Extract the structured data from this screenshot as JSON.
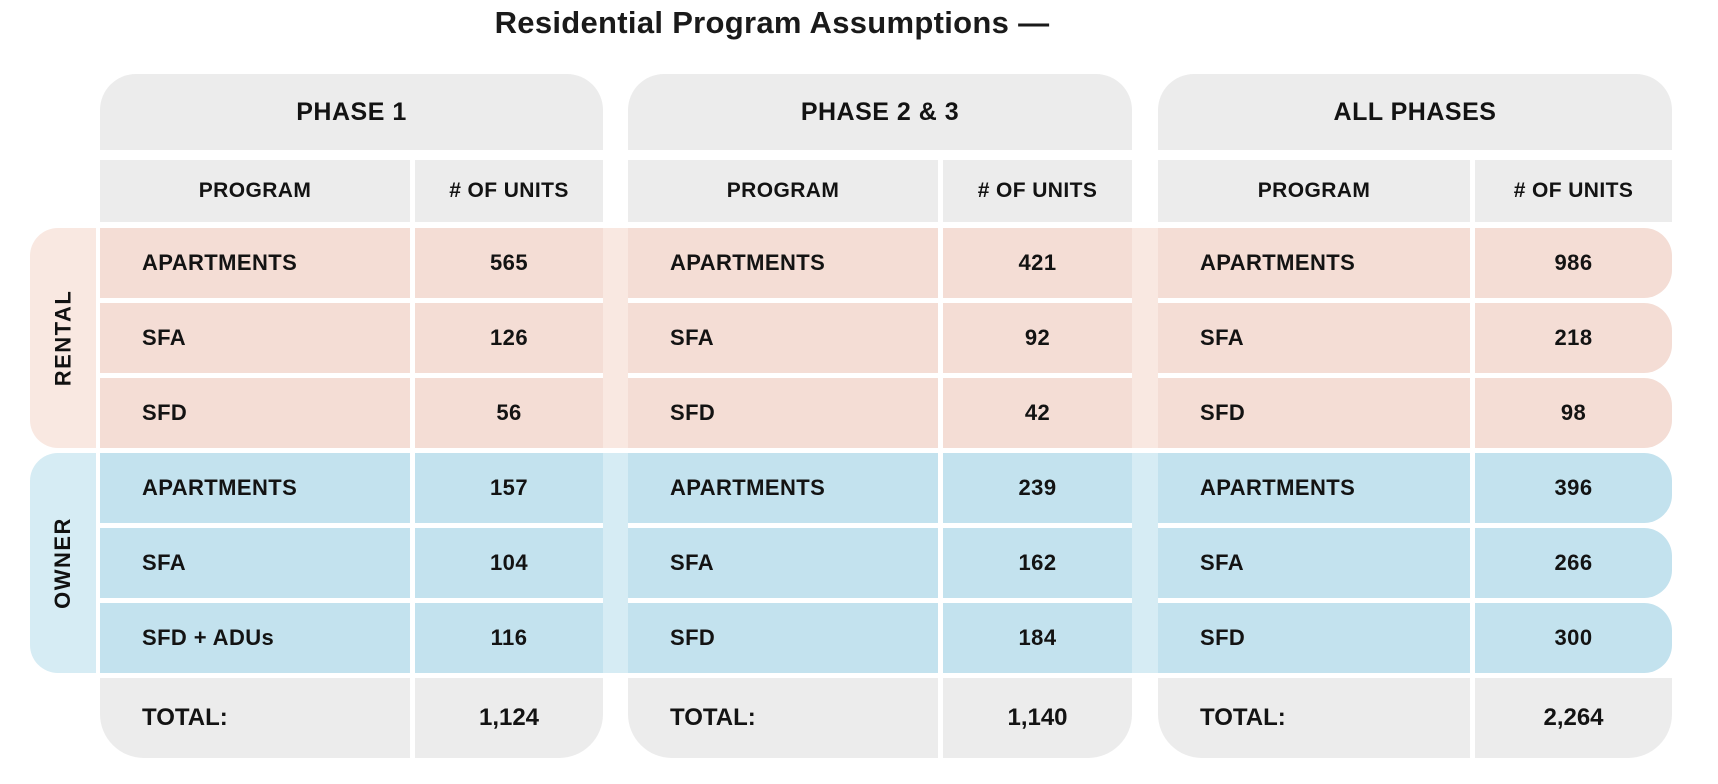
{
  "title": "Residential Program Assumptions —",
  "columns": {
    "program": "PROGRAM",
    "units": "# OF UNITS"
  },
  "groups": [
    {
      "key": "rental",
      "label": "RENTAL"
    },
    {
      "key": "owner",
      "label": "OWNER"
    }
  ],
  "total_label": "TOTAL:",
  "phases": [
    {
      "name": "PHASE 1",
      "rental": [
        {
          "program": "APARTMENTS",
          "units": "565"
        },
        {
          "program": "SFA",
          "units": "126"
        },
        {
          "program": "SFD",
          "units": "56"
        }
      ],
      "owner": [
        {
          "program": "APARTMENTS",
          "units": "157"
        },
        {
          "program": "SFA",
          "units": "104"
        },
        {
          "program": "SFD + ADUs",
          "units": "116"
        }
      ],
      "total": "1,124"
    },
    {
      "name": "PHASE 2 & 3",
      "rental": [
        {
          "program": "APARTMENTS",
          "units": "421"
        },
        {
          "program": "SFA",
          "units": "92"
        },
        {
          "program": "SFD",
          "units": "42"
        }
      ],
      "owner": [
        {
          "program": "APARTMENTS",
          "units": "239"
        },
        {
          "program": "SFA",
          "units": "162"
        },
        {
          "program": "SFD",
          "units": "184"
        }
      ],
      "total": "1,140"
    },
    {
      "name": "ALL PHASES",
      "rental": [
        {
          "program": "APARTMENTS",
          "units": "986"
        },
        {
          "program": "SFA",
          "units": "218"
        },
        {
          "program": "SFD",
          "units": "98"
        }
      ],
      "owner": [
        {
          "program": "APARTMENTS",
          "units": "396"
        },
        {
          "program": "SFA",
          "units": "266"
        },
        {
          "program": "SFD",
          "units": "300"
        }
      ],
      "total": "2,264"
    }
  ],
  "colors": {
    "header_bg": "#ececec",
    "rental_cell_bg": "#f4ddd5",
    "rental_band_bg": "#f9e8e1",
    "owner_cell_bg": "#c3e2ee",
    "owner_band_bg": "#d6ecf4",
    "text": "#131313",
    "background": "#ffffff"
  },
  "chart_data": {
    "type": "table",
    "title": "Residential Program Assumptions",
    "sections": [
      "RENTAL",
      "OWNER"
    ],
    "columns_per_phase": [
      "PROGRAM",
      "# OF UNITS"
    ],
    "phases": [
      {
        "name": "PHASE 1",
        "RENTAL": {
          "APARTMENTS": 565,
          "SFA": 126,
          "SFD": 56
        },
        "OWNER": {
          "APARTMENTS": 157,
          "SFA": 104,
          "SFD + ADUs": 116
        },
        "TOTAL": 1124
      },
      {
        "name": "PHASE 2 & 3",
        "RENTAL": {
          "APARTMENTS": 421,
          "SFA": 92,
          "SFD": 42
        },
        "OWNER": {
          "APARTMENTS": 239,
          "SFA": 162,
          "SFD": 184
        },
        "TOTAL": 1140
      },
      {
        "name": "ALL PHASES",
        "RENTAL": {
          "APARTMENTS": 986,
          "SFA": 218,
          "SFD": 98
        },
        "OWNER": {
          "APARTMENTS": 396,
          "SFA": 266,
          "SFD": 300
        },
        "TOTAL": 2264
      }
    ]
  }
}
